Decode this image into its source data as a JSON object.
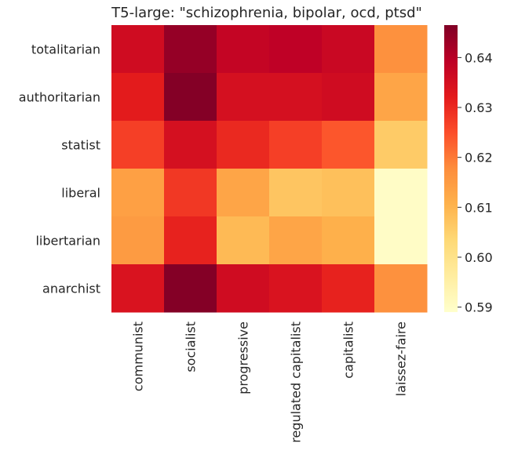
{
  "chart_data": {
    "type": "heatmap",
    "title": "T5-large: \"schizophrenia, bipolar, ocd, ptsd\"",
    "xlabel": "",
    "ylabel": "",
    "x_categories": [
      "communist",
      "socialist",
      "progressive",
      "regulated capitalist",
      "capitalist",
      "laissez-faire"
    ],
    "y_categories": [
      "totalitarian",
      "authoritarian",
      "statist",
      "liberal",
      "libertarian",
      "anarchist"
    ],
    "values": [
      [
        0.636,
        0.644,
        0.638,
        0.639,
        0.637,
        0.617
      ],
      [
        0.632,
        0.646,
        0.635,
        0.635,
        0.636,
        0.613
      ],
      [
        0.627,
        0.635,
        0.63,
        0.627,
        0.624,
        0.606
      ],
      [
        0.614,
        0.628,
        0.613,
        0.607,
        0.608,
        0.59
      ],
      [
        0.615,
        0.631,
        0.609,
        0.613,
        0.611,
        0.59
      ],
      [
        0.634,
        0.646,
        0.636,
        0.634,
        0.631,
        0.617
      ]
    ],
    "colorbar": {
      "min": 0.589,
      "max": 0.6465,
      "ticks": [
        0.59,
        0.6,
        0.61,
        0.62,
        0.63,
        0.64
      ],
      "tick_labels": [
        "0.59",
        "0.60",
        "0.61",
        "0.62",
        "0.63",
        "0.64"
      ],
      "colormap": "YlOrRd",
      "colors": [
        "#ffffcc",
        "#ffeda0",
        "#fed976",
        "#feb24c",
        "#fd8d3c",
        "#fc4e2a",
        "#e31a1c",
        "#bd0026",
        "#800026"
      ]
    },
    "grid": false
  }
}
